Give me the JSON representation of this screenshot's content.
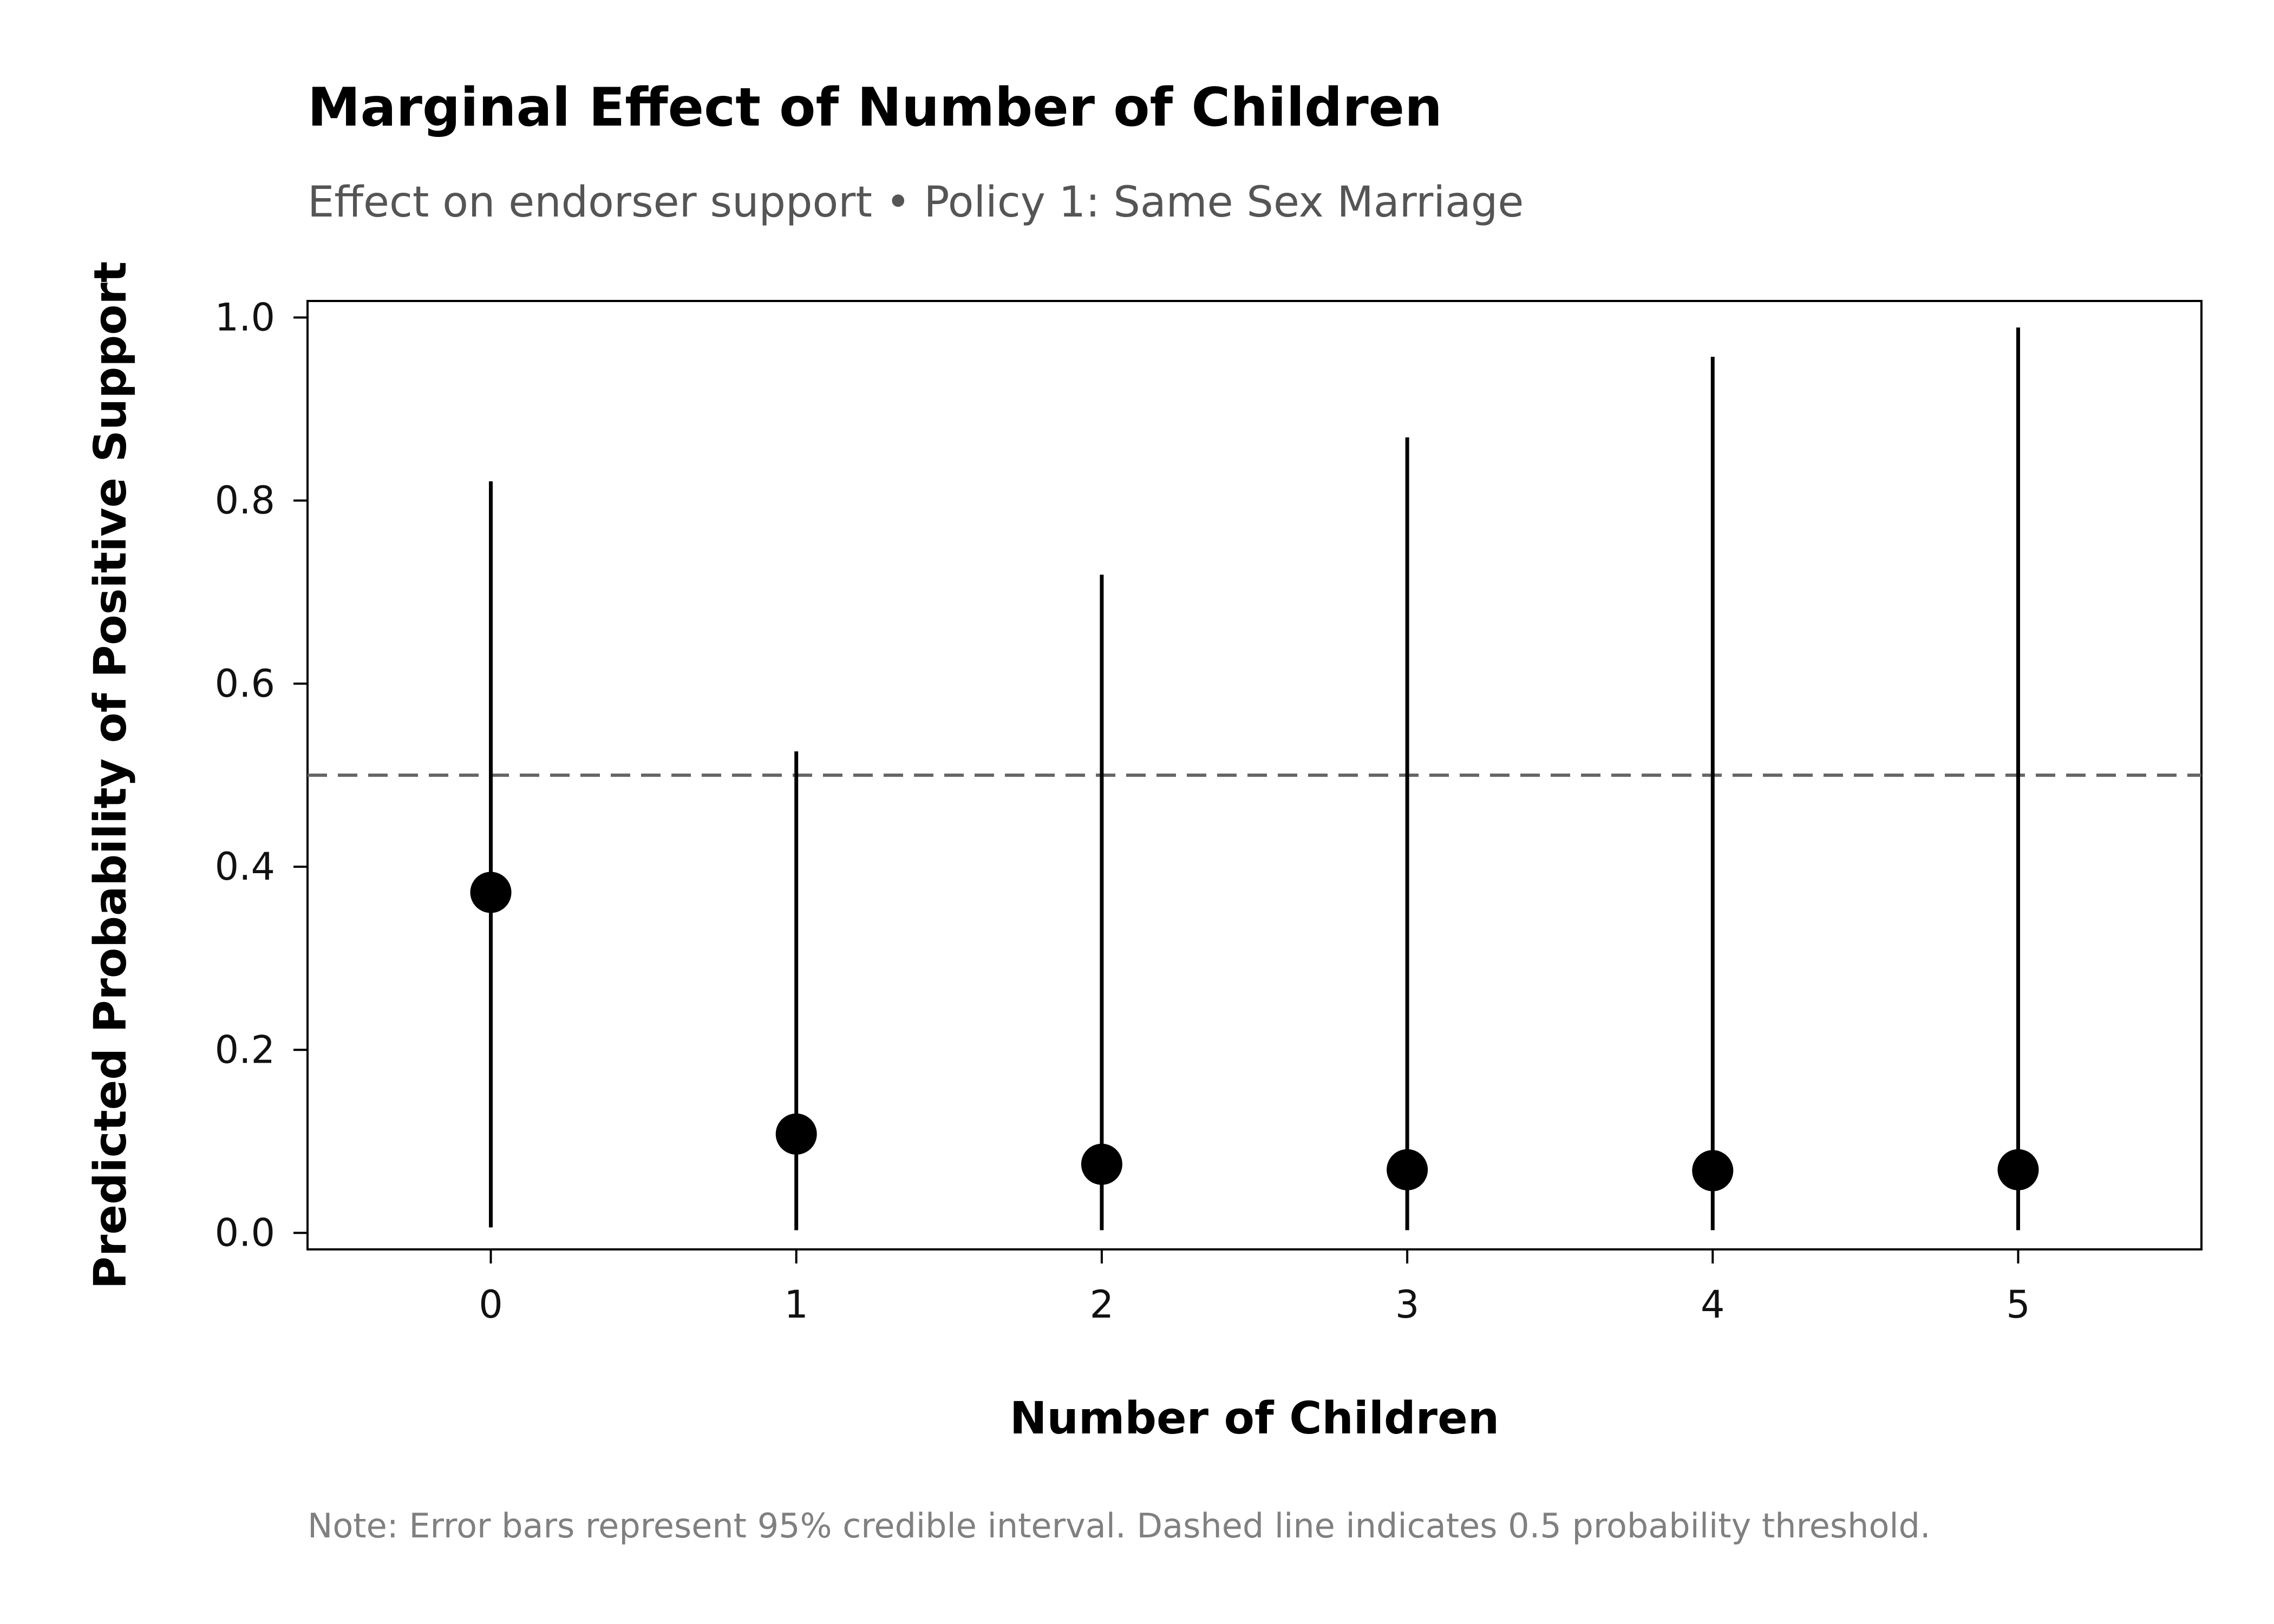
{
  "chart_data": {
    "type": "scatter",
    "title": "Marginal Effect of Number of Children",
    "subtitle": "Effect on endorser support • Policy 1: Same Sex Marriage",
    "xlabel": "Number of Children",
    "ylabel": "Predicted Probability of Positive Support",
    "note": "Note: Error bars represent 95% credible interval. Dashed line indicates 0.5 probability threshold.",
    "categories": [
      "0",
      "1",
      "2",
      "3",
      "4",
      "5"
    ],
    "x": [
      0,
      1,
      2,
      3,
      4,
      5
    ],
    "values": [
      0.372,
      0.108,
      0.075,
      0.069,
      0.068,
      0.069
    ],
    "ci_lower": [
      0.006,
      0.003,
      0.003,
      0.003,
      0.003,
      0.003
    ],
    "ci_upper": [
      0.821,
      0.526,
      0.719,
      0.869,
      0.957,
      0.989
    ],
    "threshold": 0.5,
    "xlim": [
      -0.6,
      5.6
    ],
    "ylim": [
      -0.018,
      1.018
    ],
    "yticks": [
      0.0,
      0.2,
      0.4,
      0.6,
      0.8,
      1.0
    ],
    "ytick_labels": [
      "0.0",
      "0.2",
      "0.4",
      "0.6",
      "0.8",
      "1.0"
    ],
    "xtick_labels": [
      "0",
      "1",
      "2",
      "3",
      "4",
      "5"
    ],
    "grid": false,
    "legend": "none",
    "colors": {
      "points": "#000000",
      "error_bars": "#000000",
      "threshold_line": "#666666",
      "frame": "#000000"
    }
  }
}
